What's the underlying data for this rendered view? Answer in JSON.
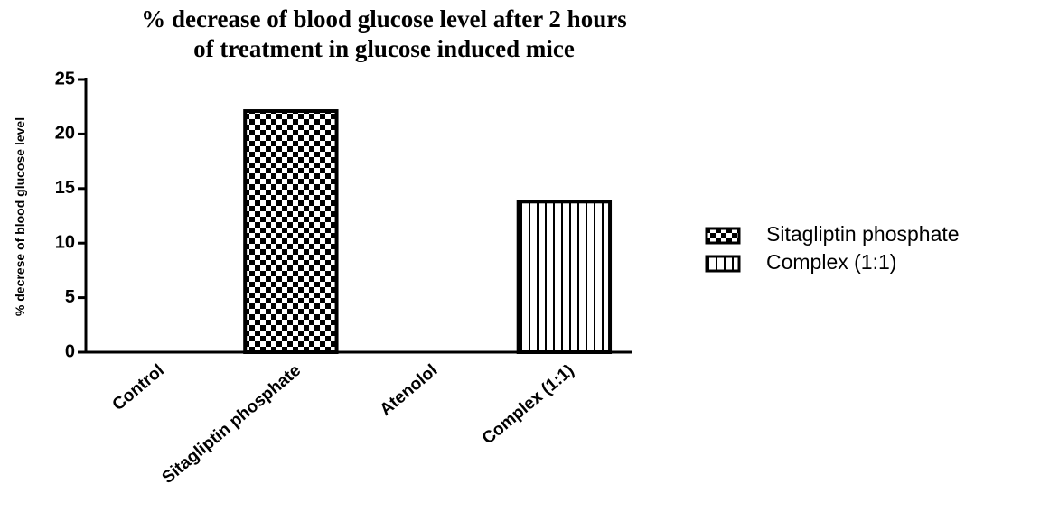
{
  "chart_data": {
    "type": "bar",
    "title": [
      "% decrease of blood glucose level after 2 hours",
      "of treatment in glucose induced  mice"
    ],
    "y_label": "% decrese of blood glucose level",
    "categories": [
      "Control",
      "Sitagliptin phosphate",
      "Atenolol",
      "Complex (1:1)"
    ],
    "series": [
      {
        "name": "Sitagliptin phosphate",
        "pattern": "checker",
        "color": "#000000",
        "values": [
          null,
          22.1,
          null,
          null
        ]
      },
      {
        "name": "Complex (1:1)",
        "pattern": "vertical-lines",
        "color": "#000000",
        "values": [
          null,
          null,
          null,
          13.8
        ]
      }
    ],
    "ylim": [
      0,
      25
    ],
    "yticks": [
      0,
      5,
      10,
      15,
      20,
      25
    ],
    "legend": "right"
  }
}
